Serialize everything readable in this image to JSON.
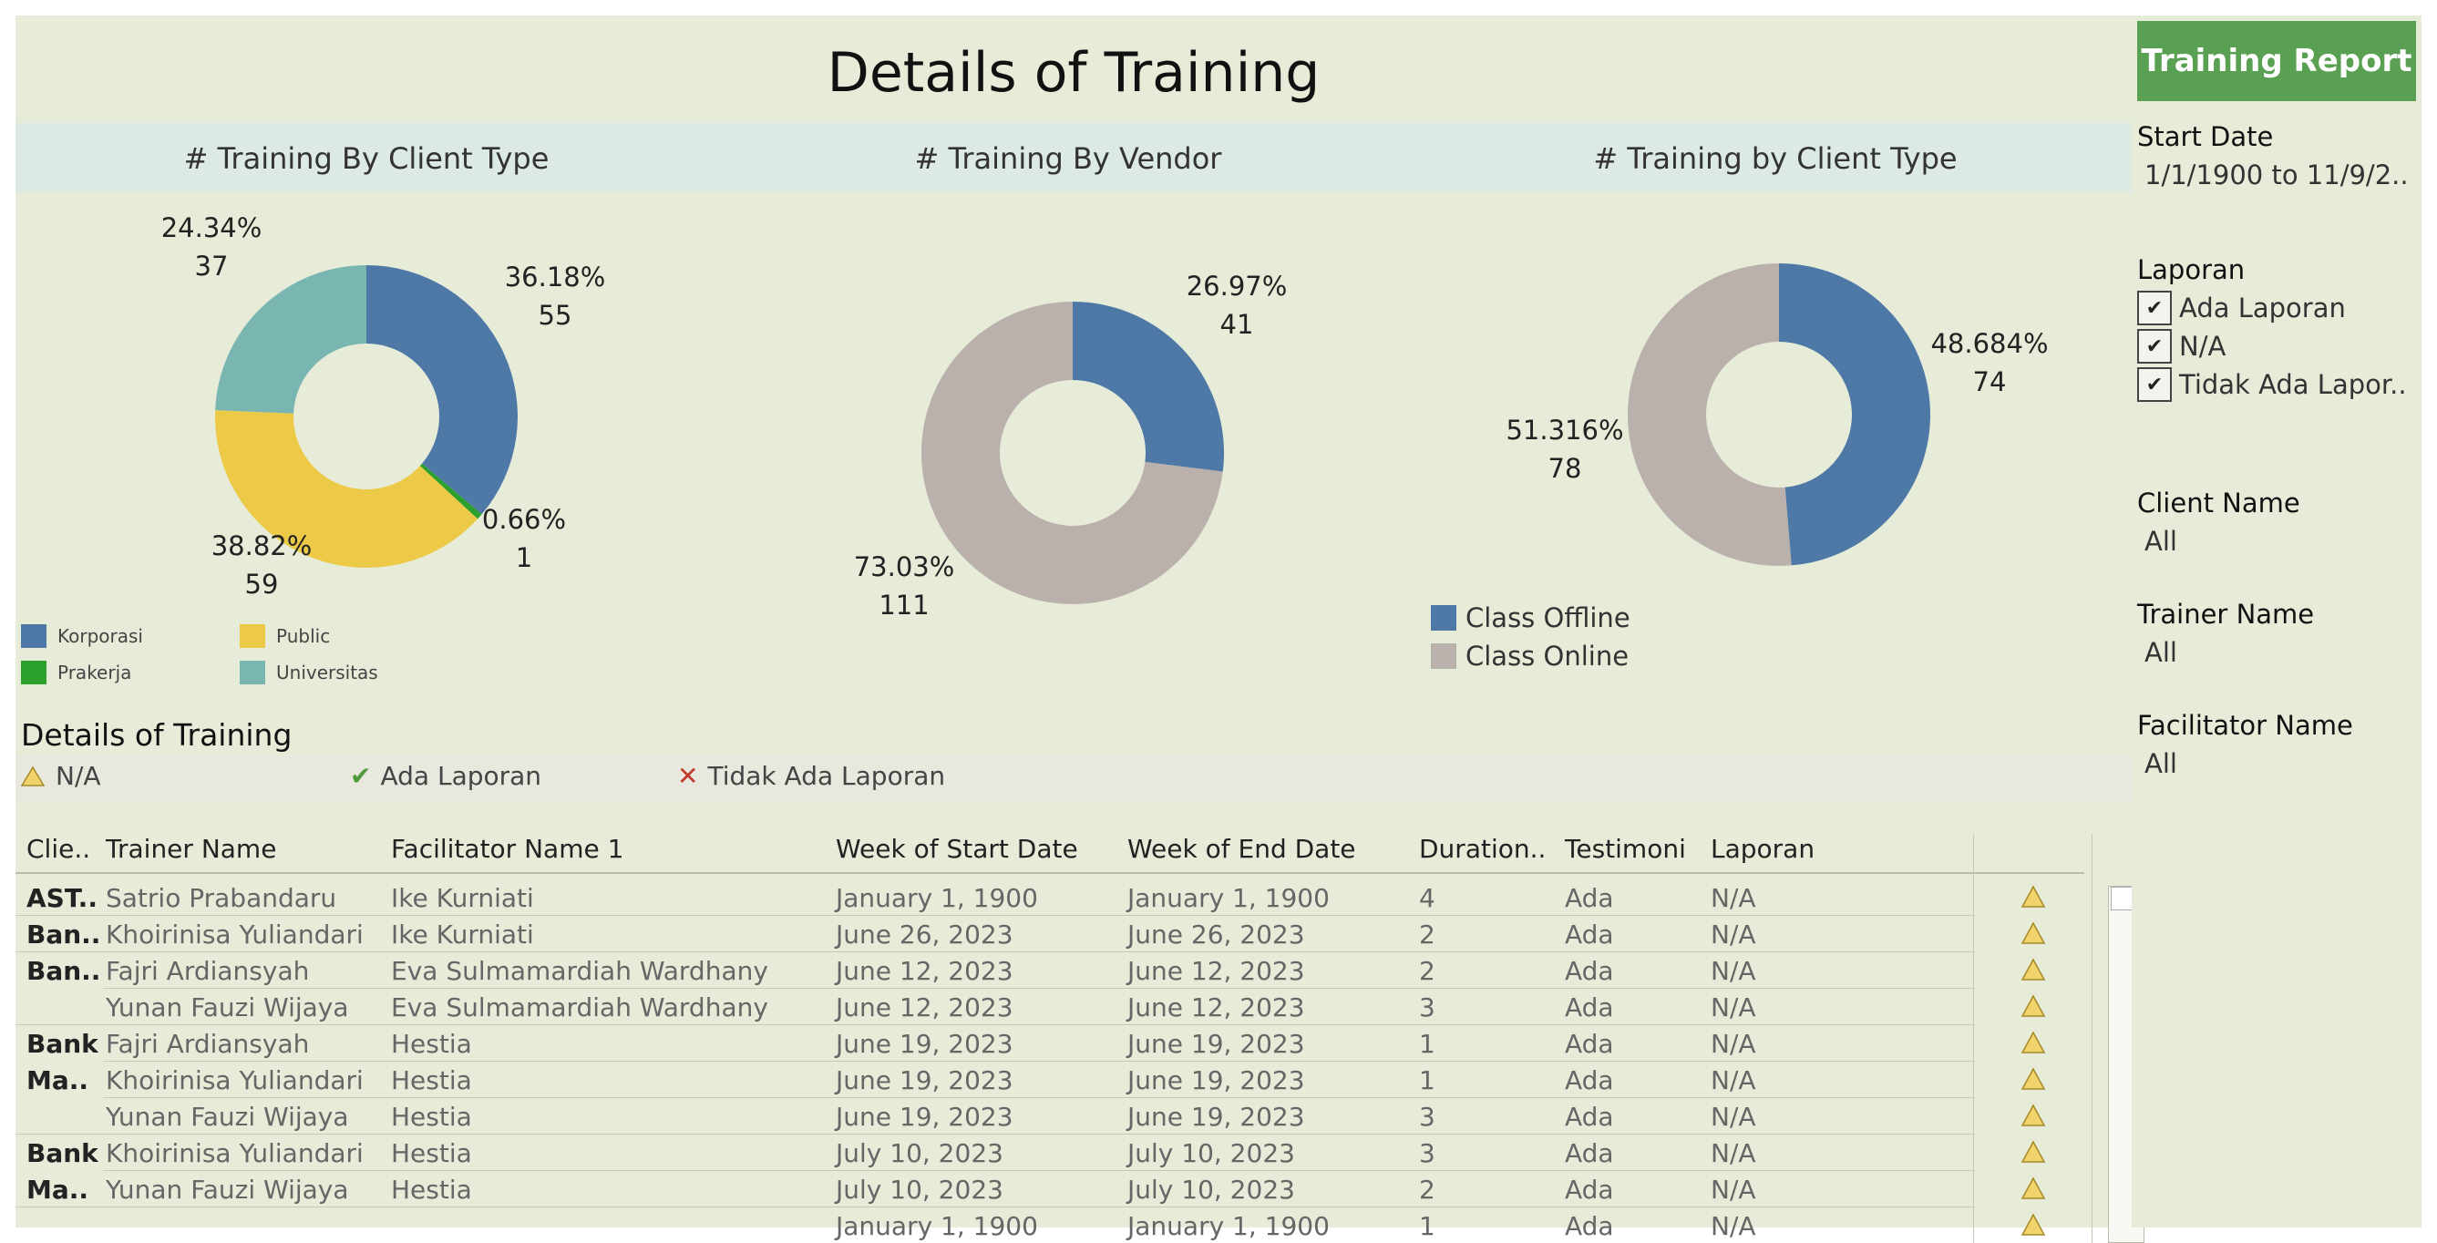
{
  "title": "Details of Training",
  "sections": [
    "# Training By Client Type",
    "# Training By Vendor",
    "# Training by Client Type"
  ],
  "colors": {
    "blue": "#4e79a7",
    "yellow": "#edc948",
    "green": "#2ca02c",
    "teal": "#7ab6b1",
    "gray": "#bab0ac",
    "button": "#5aa052"
  },
  "chart_data": [
    {
      "type": "pie",
      "title": "# Training By Client Type",
      "categories": [
        "Korporasi",
        "Prakerja",
        "Public",
        "Universitas"
      ],
      "values": [
        55,
        1,
        59,
        37
      ],
      "percent_labels": [
        "36.18%",
        "0.66%",
        "38.82%",
        "24.34%"
      ],
      "count_labels": [
        "55",
        "1",
        "59",
        "37"
      ],
      "colors": [
        "#4e79a7",
        "#2ca02c",
        "#edc948",
        "#7ab6b1"
      ],
      "legend": [
        "Korporasi",
        "Public",
        "Prakerja",
        "Universitas"
      ]
    },
    {
      "type": "pie",
      "title": "# Training By Vendor",
      "categories": [
        "",
        ""
      ],
      "values": [
        41,
        111
      ],
      "percent_labels": [
        "26.97%",
        "73.03%"
      ],
      "count_labels": [
        "41",
        "111"
      ],
      "colors": [
        "#4e79a7",
        "#bab0ac"
      ]
    },
    {
      "type": "pie",
      "title": "# Training by Client Type",
      "categories": [
        "Class Offline",
        "Class Online"
      ],
      "values": [
        74,
        78
      ],
      "percent_labels": [
        "48.684%",
        "51.316%"
      ],
      "count_labels": [
        "74",
        "78"
      ],
      "colors": [
        "#4e79a7",
        "#bab0ac"
      ],
      "legend": [
        "Class Offline",
        "Class Online"
      ]
    }
  ],
  "table": {
    "title": "Details of Training",
    "status_legend": [
      "N/A",
      "Ada Laporan",
      "Tidak Ada Laporan"
    ],
    "columns": [
      "Clie..",
      "Trainer Name",
      "Facilitator Name 1",
      "Week of Start Date",
      "Week of End Date",
      "Duration..",
      "Testimoni",
      "Laporan"
    ],
    "clients": [
      {
        "label": "AST..",
        "row_start": 0,
        "rows": 1,
        "lines": [
          "AST.."
        ]
      },
      {
        "label": "Ban..",
        "row_start": 1,
        "rows": 1,
        "lines": [
          "Ban.."
        ]
      },
      {
        "label": "Ban..",
        "row_start": 2,
        "rows": 2,
        "lines": [
          "Ban.."
        ]
      },
      {
        "label": "Bank Ma..",
        "row_start": 4,
        "rows": 3,
        "lines": [
          "Bank",
          "Ma.."
        ]
      },
      {
        "label": "Bank Ma..",
        "row_start": 7,
        "rows": 2,
        "lines": [
          "Bank",
          "Ma.."
        ]
      }
    ],
    "rows": [
      [
        "Satrio Prabandaru",
        "Ike Kurniati",
        "January 1, 1900",
        "January 1, 1900",
        "4",
        "Ada",
        "N/A"
      ],
      [
        "Khoirinisa Yuliandari",
        "Ike Kurniati",
        "June 26, 2023",
        "June 26, 2023",
        "2",
        "Ada",
        "N/A"
      ],
      [
        "Fajri Ardiansyah",
        "Eva Sulmamardiah Wardhany",
        "June 12, 2023",
        "June 12, 2023",
        "2",
        "Ada",
        "N/A"
      ],
      [
        "Yunan Fauzi Wijaya",
        "Eva Sulmamardiah Wardhany",
        "June 12, 2023",
        "June 12, 2023",
        "3",
        "Ada",
        "N/A"
      ],
      [
        "Fajri Ardiansyah",
        "Hestia",
        "June 19, 2023",
        "June 19, 2023",
        "1",
        "Ada",
        "N/A"
      ],
      [
        "Khoirinisa Yuliandari",
        "Hestia",
        "June 19, 2023",
        "June 19, 2023",
        "1",
        "Ada",
        "N/A"
      ],
      [
        "Yunan Fauzi Wijaya",
        "Hestia",
        "June 19, 2023",
        "June 19, 2023",
        "3",
        "Ada",
        "N/A"
      ],
      [
        "Khoirinisa Yuliandari",
        "Hestia",
        "July 10, 2023",
        "July 10, 2023",
        "3",
        "Ada",
        "N/A"
      ],
      [
        "Yunan Fauzi Wijaya",
        "Hestia",
        "July 10, 2023",
        "July 10, 2023",
        "2",
        "Ada",
        "N/A"
      ],
      [
        "",
        "",
        "January 1, 1900",
        "January 1, 1900",
        "1",
        "Ada",
        "N/A"
      ]
    ]
  },
  "sidebar": {
    "report_button": "Training Report",
    "start_date_label": "Start Date",
    "start_date_value": "1/1/1900 to 11/9/2..",
    "laporan_label": "Laporan",
    "laporan_options": [
      "Ada Laporan",
      "N/A",
      "Tidak Ada Lapor.."
    ],
    "client_label": "Client Name",
    "client_value": "All",
    "trainer_label": "Trainer Name",
    "trainer_value": "All",
    "facilitator_label": "Facilitator Name",
    "facilitator_value": "All"
  }
}
